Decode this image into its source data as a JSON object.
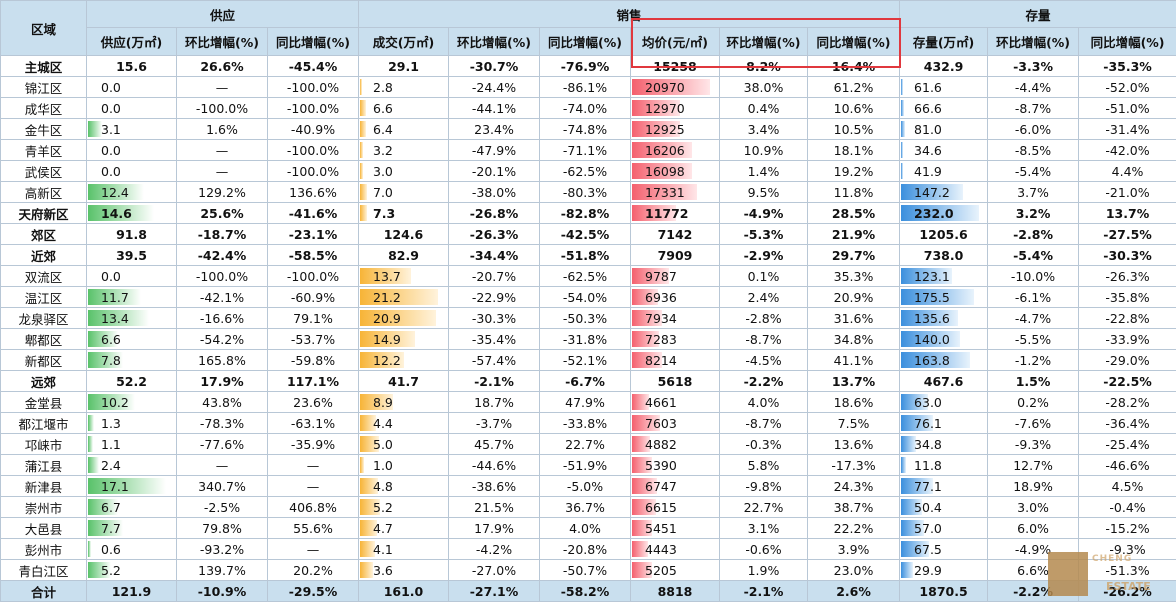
{
  "header": {
    "region": "区域",
    "groups": {
      "supply": "供应",
      "sales": "销售",
      "stock": "存量"
    },
    "columns": [
      "供应(万㎡)",
      "环比增幅(%)",
      "同比增幅(%)",
      "成交(万㎡)",
      "环比增幅(%)",
      "同比增幅(%)",
      "均价(元/㎡)",
      "环比增幅(%)",
      "同比增幅(%)",
      "存量(万㎡)",
      "环比增幅(%)",
      "同比增幅(%)"
    ]
  },
  "rows": [
    {
      "name": "主城区",
      "bold": true,
      "v": [
        "15.6",
        "26.6%",
        "-45.4%",
        "29.1",
        "-30.7%",
        "-76.9%",
        "15258",
        "8.2%",
        "16.4%",
        "432.9",
        "-3.3%",
        "-35.3%"
      ],
      "bars": [
        null,
        null,
        null,
        null
      ]
    },
    {
      "name": "锦江区",
      "v": [
        "0.0",
        "—",
        "-100.0%",
        "2.8",
        "-24.4%",
        "-86.1%",
        "20970",
        "38.0%",
        "61.2%",
        "61.6",
        "-4.4%",
        "-52.0%"
      ],
      "bars": [
        0,
        0.03,
        1.0,
        0.03
      ]
    },
    {
      "name": "成华区",
      "v": [
        "0.0",
        "-100.0%",
        "-100.0%",
        "6.6",
        "-44.1%",
        "-74.0%",
        "12970",
        "0.4%",
        "10.6%",
        "66.6",
        "-8.7%",
        "-51.0%"
      ],
      "bars": [
        0,
        0.08,
        0.62,
        0.04
      ]
    },
    {
      "name": "金牛区",
      "v": [
        "3.1",
        "1.6%",
        "-40.9%",
        "6.4",
        "23.4%",
        "-74.8%",
        "12925",
        "3.4%",
        "10.5%",
        "81.0",
        "-6.0%",
        "-31.4%"
      ],
      "bars": [
        0.18,
        0.08,
        0.62,
        0.05
      ]
    },
    {
      "name": "青羊区",
      "v": [
        "0.0",
        "—",
        "-100.0%",
        "3.2",
        "-47.9%",
        "-71.1%",
        "16206",
        "10.9%",
        "18.1%",
        "34.6",
        "-8.5%",
        "-42.0%"
      ],
      "bars": [
        0,
        0.04,
        0.77,
        0.02
      ]
    },
    {
      "name": "武侯区",
      "v": [
        "0.0",
        "—",
        "-100.0%",
        "3.0",
        "-20.1%",
        "-62.5%",
        "16098",
        "1.4%",
        "19.2%",
        "41.9",
        "-5.4%",
        "4.4%"
      ],
      "bars": [
        0,
        0.04,
        0.77,
        0.02
      ]
    },
    {
      "name": "高新区",
      "v": [
        "12.4",
        "129.2%",
        "136.6%",
        "7.0",
        "-38.0%",
        "-80.3%",
        "17331",
        "9.5%",
        "11.8%",
        "147.2",
        "3.7%",
        "-21.0%"
      ],
      "bars": [
        0.72,
        0.09,
        0.83,
        0.79
      ]
    },
    {
      "name": "天府新区",
      "bold": true,
      "v": [
        "14.6",
        "25.6%",
        "-41.6%",
        "7.3",
        "-26.8%",
        "-82.8%",
        "11772",
        "-4.9%",
        "28.5%",
        "232.0",
        "3.2%",
        "13.7%"
      ],
      "bars": [
        0.85,
        0.09,
        0.56,
        1.0
      ]
    },
    {
      "name": "郊区",
      "bold": true,
      "v": [
        "91.8",
        "-18.7%",
        "-23.1%",
        "124.6",
        "-26.3%",
        "-42.5%",
        "7142",
        "-5.3%",
        "21.9%",
        "1205.6",
        "-2.8%",
        "-27.5%"
      ],
      "bars": [
        null,
        null,
        null,
        null
      ]
    },
    {
      "name": "近郊",
      "bold": true,
      "v": [
        "39.5",
        "-42.4%",
        "-58.5%",
        "82.9",
        "-34.4%",
        "-51.8%",
        "7909",
        "-2.9%",
        "29.7%",
        "738.0",
        "-5.4%",
        "-30.3%"
      ],
      "bars": [
        null,
        null,
        null,
        null
      ]
    },
    {
      "name": "双流区",
      "v": [
        "0.0",
        "-100.0%",
        "-100.0%",
        "13.7",
        "-20.7%",
        "-62.5%",
        "9787",
        "0.1%",
        "35.3%",
        "123.1",
        "-10.0%",
        "-26.3%"
      ],
      "bars": [
        0,
        0.65,
        0.47,
        0.66
      ]
    },
    {
      "name": "温江区",
      "v": [
        "11.7",
        "-42.1%",
        "-60.9%",
        "21.2",
        "-22.9%",
        "-54.0%",
        "6936",
        "2.4%",
        "20.9%",
        "175.5",
        "-6.1%",
        "-35.8%"
      ],
      "bars": [
        0.68,
        1.0,
        0.33,
        0.94
      ]
    },
    {
      "name": "龙泉驿区",
      "v": [
        "13.4",
        "-16.6%",
        "79.1%",
        "20.9",
        "-30.3%",
        "-50.3%",
        "7934",
        "-2.8%",
        "31.6%",
        "135.6",
        "-4.7%",
        "-22.8%"
      ],
      "bars": [
        0.78,
        0.98,
        0.38,
        0.73
      ]
    },
    {
      "name": "郫都区",
      "v": [
        "6.6",
        "-54.2%",
        "-53.7%",
        "14.9",
        "-35.4%",
        "-31.8%",
        "7283",
        "-8.7%",
        "34.8%",
        "140.0",
        "-5.5%",
        "-33.9%"
      ],
      "bars": [
        0.38,
        0.7,
        0.35,
        0.75
      ]
    },
    {
      "name": "新都区",
      "v": [
        "7.8",
        "165.8%",
        "-59.8%",
        "12.2",
        "-57.4%",
        "-52.1%",
        "8214",
        "-4.5%",
        "41.1%",
        "163.8",
        "-1.2%",
        "-29.0%"
      ],
      "bars": [
        0.45,
        0.57,
        0.39,
        0.88
      ]
    },
    {
      "name": "远郊",
      "bold": true,
      "v": [
        "52.2",
        "17.9%",
        "117.1%",
        "41.7",
        "-2.1%",
        "-6.7%",
        "5618",
        "-2.2%",
        "13.7%",
        "467.6",
        "1.5%",
        "-22.5%"
      ],
      "bars": [
        null,
        null,
        null,
        null
      ]
    },
    {
      "name": "金堂县",
      "v": [
        "10.2",
        "43.8%",
        "23.6%",
        "8.9",
        "18.7%",
        "47.9%",
        "4661",
        "4.0%",
        "18.6%",
        "63.0",
        "0.2%",
        "-28.2%"
      ],
      "bars": [
        0.6,
        0.42,
        0.22,
        0.34
      ]
    },
    {
      "name": "都江堰市",
      "v": [
        "1.3",
        "-78.3%",
        "-63.1%",
        "4.4",
        "-3.7%",
        "-33.8%",
        "7603",
        "-8.7%",
        "7.5%",
        "76.1",
        "-7.6%",
        "-36.4%"
      ],
      "bars": [
        0.08,
        0.21,
        0.36,
        0.41
      ]
    },
    {
      "name": "邛崃市",
      "v": [
        "1.1",
        "-77.6%",
        "-35.9%",
        "5.0",
        "45.7%",
        "22.7%",
        "4882",
        "-0.3%",
        "13.6%",
        "34.8",
        "-9.3%",
        "-25.4%"
      ],
      "bars": [
        0.06,
        0.24,
        0.23,
        0.19
      ]
    },
    {
      "name": "蒲江县",
      "v": [
        "2.4",
        "—",
        "—",
        "1.0",
        "-44.6%",
        "-51.9%",
        "5390",
        "5.8%",
        "-17.3%",
        "11.8",
        "12.7%",
        "-46.6%"
      ],
      "bars": [
        0.14,
        0.05,
        0.25,
        0.06
      ]
    },
    {
      "name": "新津县",
      "v": [
        "17.1",
        "340.7%",
        "—",
        "4.8",
        "-38.6%",
        "-5.0%",
        "6747",
        "-9.8%",
        "24.3%",
        "77.1",
        "18.9%",
        "4.5%"
      ],
      "bars": [
        1.0,
        0.23,
        0.32,
        0.41
      ]
    },
    {
      "name": "崇州市",
      "v": [
        "6.7",
        "-2.5%",
        "406.8%",
        "5.2",
        "21.5%",
        "36.7%",
        "6615",
        "22.7%",
        "38.7%",
        "50.4",
        "3.0%",
        "-0.4%"
      ],
      "bars": [
        0.39,
        0.25,
        0.31,
        0.27
      ]
    },
    {
      "name": "大邑县",
      "v": [
        "7.7",
        "79.8%",
        "55.6%",
        "4.7",
        "17.9%",
        "4.0%",
        "5451",
        "3.1%",
        "22.2%",
        "57.0",
        "6.0%",
        "-15.2%"
      ],
      "bars": [
        0.45,
        0.22,
        0.26,
        0.3
      ]
    },
    {
      "name": "彭州市",
      "v": [
        "0.6",
        "-93.2%",
        "—",
        "4.1",
        "-4.2%",
        "-20.8%",
        "4443",
        "-0.6%",
        "3.9%",
        "67.5",
        "-4.9%",
        "-9.3%"
      ],
      "bars": [
        0.04,
        0.19,
        0.21,
        0.36
      ]
    },
    {
      "name": "青白江区",
      "v": [
        "5.2",
        "139.7%",
        "20.2%",
        "3.6",
        "-27.0%",
        "-50.7%",
        "5205",
        "1.9%",
        "23.0%",
        "29.9",
        "6.6%",
        "-51.3%"
      ],
      "bars": [
        0.3,
        0.17,
        0.25,
        0.16
      ]
    }
  ],
  "total": {
    "name": "合计",
    "v": [
      "121.9",
      "-10.9%",
      "-29.5%",
      "161.0",
      "-27.1%",
      "-58.2%",
      "8818",
      "-2.1%",
      "2.6%",
      "1870.5",
      "-2.2%",
      "-26.2%"
    ]
  },
  "colors": {
    "supply_bar": "#59c26a",
    "sales_bar": "#f7b437",
    "price_bar": "#f4606e",
    "stock_bar": "#3b8fdd",
    "header_bg": "#c9dfee",
    "highlight": "#e0383e"
  },
  "watermark": {
    "line1": "CHENG",
    "line2": "ESTATE"
  }
}
